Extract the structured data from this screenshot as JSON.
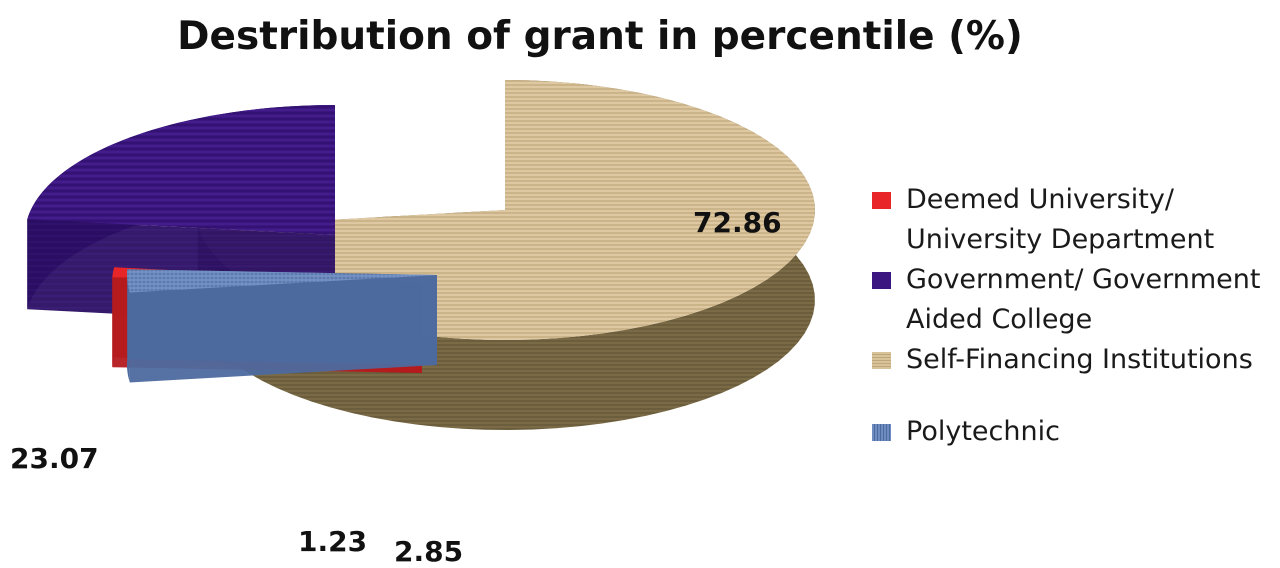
{
  "chart_data": {
    "type": "pie",
    "title": "Destribution of grant in percentile (%)",
    "categories": [
      "Deemed University/ University Department",
      "Government/ Government Aided College",
      "Self-Financing Institutions",
      "Polytechnic"
    ],
    "values": [
      1.23,
      23.07,
      72.86,
      2.85
    ],
    "data_labels": [
      "1.23",
      "23.07",
      "72.86",
      "2.85"
    ],
    "colors": [
      "#e8262a",
      "#3b1680",
      "#d8c29a",
      "#6e8cbf"
    ],
    "legend": {
      "position": "right",
      "entries": [
        {
          "line1": "Deemed University/",
          "line2": "University Department"
        },
        {
          "line1": "Government/ Government",
          "line2": "Aided College"
        },
        {
          "line1": "Self-Financing Institutions",
          "line2": ""
        },
        {
          "line1": "Polytechnic",
          "line2": ""
        }
      ]
    },
    "style": "3d-exploded"
  }
}
